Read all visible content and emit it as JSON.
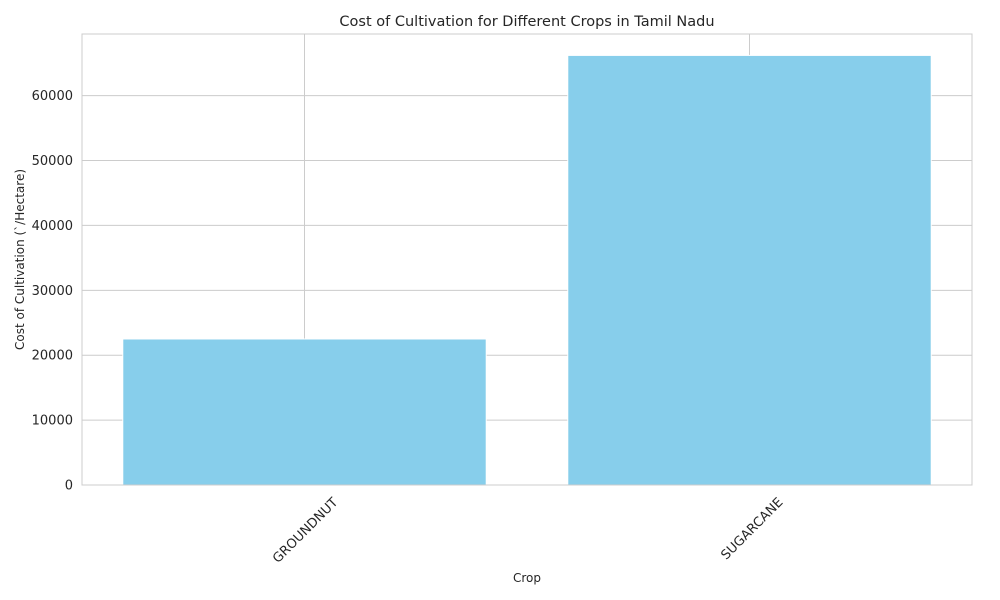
{
  "chart_data": {
    "type": "bar",
    "title": "Cost of Cultivation for Different Crops in Tamil Nadu",
    "xlabel": "Crop",
    "ylabel": "Cost of Cultivation (`/Hectare)",
    "categories": [
      "GROUNDNUT",
      "SUGARCANE"
    ],
    "values": [
      22500,
      66200
    ],
    "ylim": [
      0,
      69500
    ],
    "yticks": [
      0,
      10000,
      20000,
      30000,
      40000,
      50000,
      60000
    ],
    "grid": true,
    "bar_color": "#87ceeb",
    "grid_color": "#cccccc",
    "spine_color": "#cccccc",
    "text_color": "#262626"
  }
}
